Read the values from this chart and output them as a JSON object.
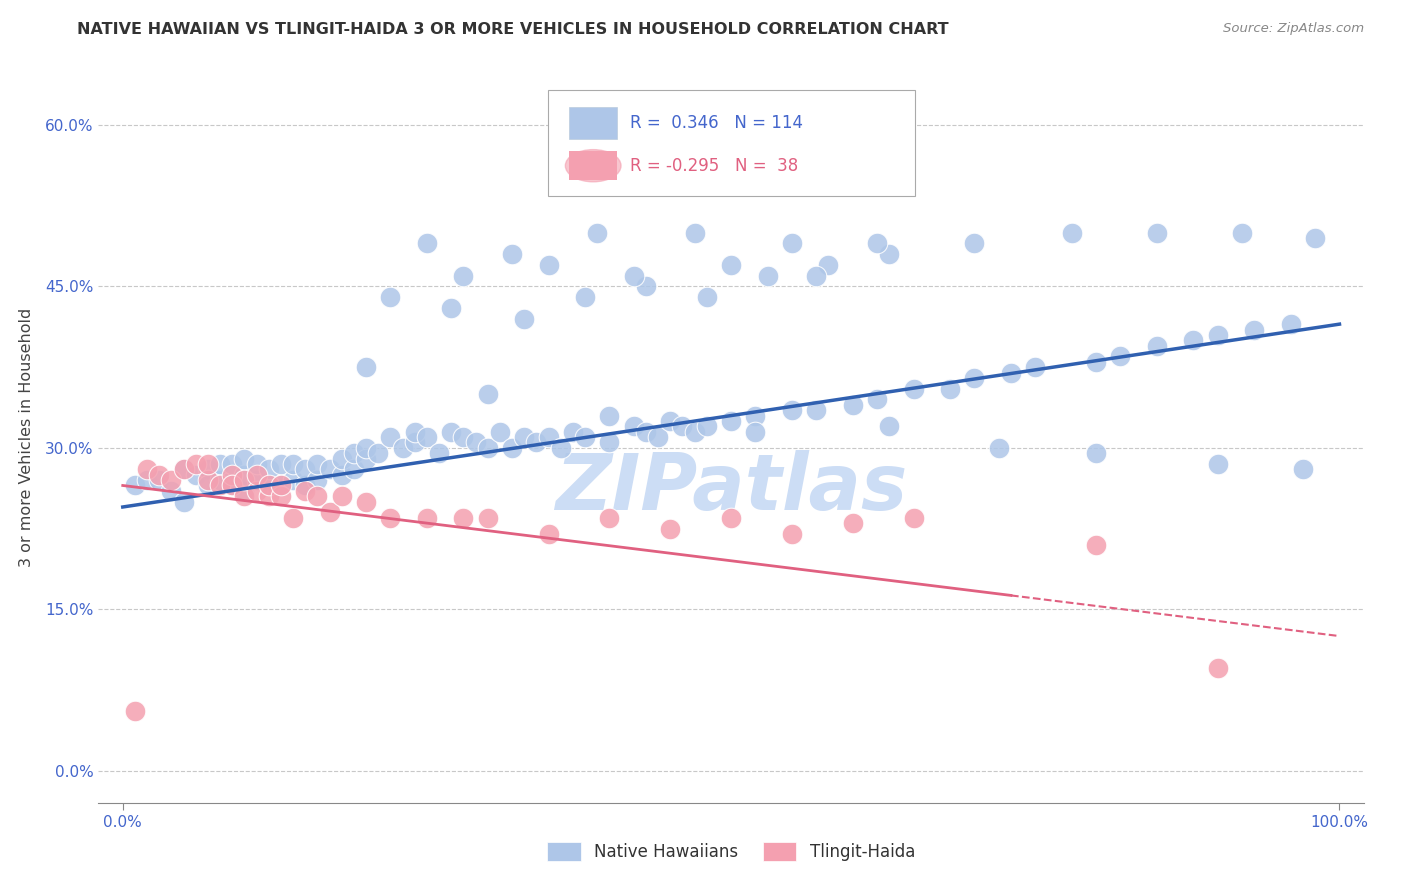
{
  "title": "NATIVE HAWAIIAN VS TLINGIT-HAIDA 3 OR MORE VEHICLES IN HOUSEHOLD CORRELATION CHART",
  "source": "Source: ZipAtlas.com",
  "ylabel": "3 or more Vehicles in Household",
  "yticks": [
    0.0,
    0.15,
    0.3,
    0.45,
    0.6
  ],
  "xlim": [
    -0.02,
    1.02
  ],
  "ylim": [
    -0.03,
    0.65
  ],
  "legend_entries": [
    {
      "label": "Native Hawaiians",
      "R": "0.346",
      "N": "114",
      "color": "#aec6e8"
    },
    {
      "label": "Tlingit-Haida",
      "R": "-0.295",
      "N": "38",
      "color": "#f4a0b0"
    }
  ],
  "blue_line": {
    "x0": 0.0,
    "y0": 0.245,
    "x1": 1.0,
    "y1": 0.415
  },
  "pink_line": {
    "x0": 0.0,
    "y0": 0.265,
    "x1": 1.0,
    "y1": 0.125
  },
  "watermark": "ZIPatlas",
  "blue_scatter_x": [
    0.01,
    0.02,
    0.03,
    0.04,
    0.05,
    0.05,
    0.06,
    0.07,
    0.07,
    0.08,
    0.08,
    0.09,
    0.09,
    0.1,
    0.1,
    0.1,
    0.11,
    0.11,
    0.12,
    0.12,
    0.13,
    0.13,
    0.14,
    0.14,
    0.15,
    0.15,
    0.16,
    0.16,
    0.17,
    0.18,
    0.18,
    0.19,
    0.19,
    0.2,
    0.2,
    0.21,
    0.22,
    0.23,
    0.24,
    0.24,
    0.25,
    0.26,
    0.27,
    0.28,
    0.29,
    0.3,
    0.31,
    0.32,
    0.33,
    0.34,
    0.35,
    0.36,
    0.37,
    0.38,
    0.4,
    0.42,
    0.43,
    0.44,
    0.45,
    0.46,
    0.47,
    0.48,
    0.5,
    0.52,
    0.55,
    0.57,
    0.6,
    0.62,
    0.65,
    0.68,
    0.7,
    0.73,
    0.75,
    0.8,
    0.82,
    0.85,
    0.88,
    0.9,
    0.93,
    0.96,
    0.22,
    0.27,
    0.33,
    0.38,
    0.43,
    0.48,
    0.53,
    0.58,
    0.28,
    0.35,
    0.42,
    0.5,
    0.57,
    0.63,
    0.25,
    0.32,
    0.39,
    0.47,
    0.55,
    0.62,
    0.7,
    0.78,
    0.85,
    0.92,
    0.98,
    0.2,
    0.3,
    0.4,
    0.52,
    0.63,
    0.72,
    0.8,
    0.9,
    0.97
  ],
  "blue_scatter_y": [
    0.265,
    0.27,
    0.27,
    0.26,
    0.28,
    0.25,
    0.275,
    0.28,
    0.265,
    0.27,
    0.285,
    0.265,
    0.285,
    0.26,
    0.275,
    0.29,
    0.27,
    0.285,
    0.265,
    0.28,
    0.265,
    0.285,
    0.27,
    0.285,
    0.265,
    0.28,
    0.27,
    0.285,
    0.28,
    0.275,
    0.29,
    0.28,
    0.295,
    0.29,
    0.3,
    0.295,
    0.31,
    0.3,
    0.305,
    0.315,
    0.31,
    0.295,
    0.315,
    0.31,
    0.305,
    0.3,
    0.315,
    0.3,
    0.31,
    0.305,
    0.31,
    0.3,
    0.315,
    0.31,
    0.305,
    0.32,
    0.315,
    0.31,
    0.325,
    0.32,
    0.315,
    0.32,
    0.325,
    0.33,
    0.335,
    0.335,
    0.34,
    0.345,
    0.355,
    0.355,
    0.365,
    0.37,
    0.375,
    0.38,
    0.385,
    0.395,
    0.4,
    0.405,
    0.41,
    0.415,
    0.44,
    0.43,
    0.42,
    0.44,
    0.45,
    0.44,
    0.46,
    0.47,
    0.46,
    0.47,
    0.46,
    0.47,
    0.46,
    0.48,
    0.49,
    0.48,
    0.5,
    0.5,
    0.49,
    0.49,
    0.49,
    0.5,
    0.5,
    0.5,
    0.495,
    0.375,
    0.35,
    0.33,
    0.315,
    0.32,
    0.3,
    0.295,
    0.285,
    0.28
  ],
  "pink_scatter_x": [
    0.01,
    0.02,
    0.03,
    0.04,
    0.05,
    0.06,
    0.07,
    0.07,
    0.08,
    0.09,
    0.09,
    0.1,
    0.1,
    0.11,
    0.11,
    0.12,
    0.12,
    0.13,
    0.13,
    0.14,
    0.15,
    0.16,
    0.17,
    0.18,
    0.2,
    0.22,
    0.25,
    0.28,
    0.3,
    0.35,
    0.4,
    0.45,
    0.5,
    0.55,
    0.6,
    0.65,
    0.8,
    0.9
  ],
  "pink_scatter_y": [
    0.055,
    0.28,
    0.275,
    0.27,
    0.28,
    0.285,
    0.27,
    0.285,
    0.265,
    0.275,
    0.265,
    0.255,
    0.27,
    0.26,
    0.275,
    0.255,
    0.265,
    0.255,
    0.265,
    0.235,
    0.26,
    0.255,
    0.24,
    0.255,
    0.25,
    0.235,
    0.235,
    0.235,
    0.235,
    0.22,
    0.235,
    0.225,
    0.235,
    0.22,
    0.23,
    0.235,
    0.21,
    0.095
  ],
  "blue_color": "#aec6e8",
  "pink_color": "#f4a0b0",
  "blue_line_color": "#3060b0",
  "pink_line_color": "#e06080",
  "grid_color": "#c8c8c8",
  "title_color": "#333333",
  "tick_color": "#4466cc",
  "watermark_color": "#ccddf5",
  "background_color": "#ffffff"
}
